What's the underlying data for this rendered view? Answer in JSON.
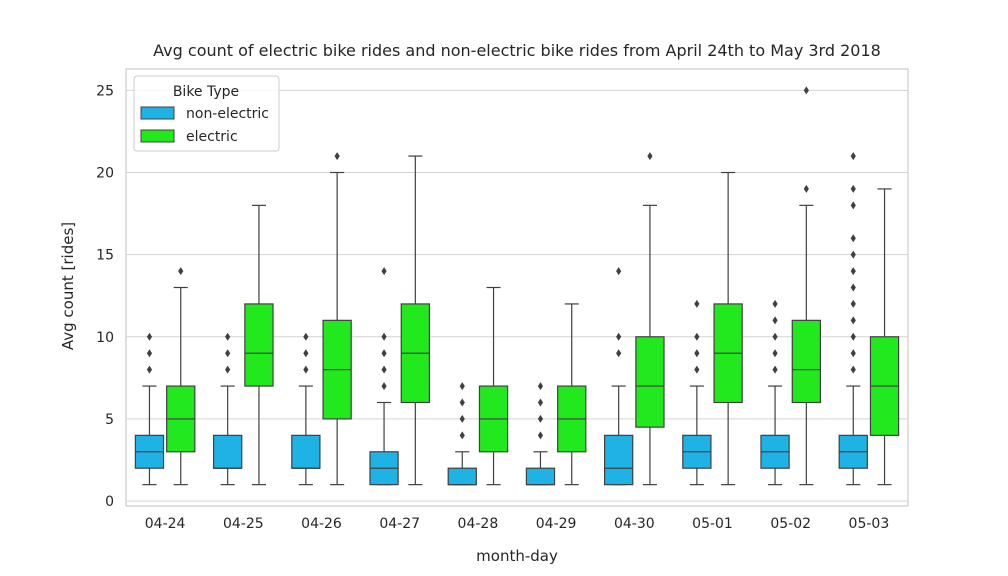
{
  "chart_data": {
    "type": "box",
    "title": "Avg count of electric bike rides and non-electric bike rides from April 24th to May 3rd 2018",
    "xlabel": "month-day",
    "ylabel": "Avg count [rides]",
    "ylim": [
      -0.3,
      26.3
    ],
    "yticks": [
      0,
      5,
      10,
      15,
      20,
      25
    ],
    "grid": "horizontal",
    "legend": {
      "title": "Bike Type",
      "placement": "top-left"
    },
    "categories": [
      "04-24",
      "04-25",
      "04-26",
      "04-27",
      "04-28",
      "04-29",
      "04-30",
      "05-01",
      "05-02",
      "05-03"
    ],
    "series": [
      {
        "name": "non-electric",
        "color": "#1fb3e5",
        "boxes": [
          {
            "whislo": 1,
            "q1": 2,
            "med": 3,
            "q3": 4,
            "whishi": 7,
            "fliers": [
              8,
              9,
              10
            ]
          },
          {
            "whislo": 1,
            "q1": 2,
            "med": 2,
            "q3": 4,
            "whishi": 7,
            "fliers": [
              8,
              9,
              10
            ]
          },
          {
            "whislo": 1,
            "q1": 2,
            "med": 2,
            "q3": 4,
            "whishi": 7,
            "fliers": [
              8,
              9,
              10
            ]
          },
          {
            "whislo": 1,
            "q1": 1,
            "med": 2,
            "q3": 3,
            "whishi": 6,
            "fliers": [
              7,
              8,
              9,
              10,
              14
            ]
          },
          {
            "whislo": 1,
            "q1": 1,
            "med": 1,
            "q3": 2,
            "whishi": 3,
            "fliers": [
              4,
              5,
              6,
              7
            ]
          },
          {
            "whislo": 1,
            "q1": 1,
            "med": 1,
            "q3": 2,
            "whishi": 3,
            "fliers": [
              4,
              5,
              6,
              7
            ]
          },
          {
            "whislo": 1,
            "q1": 1,
            "med": 2,
            "q3": 4,
            "whishi": 7,
            "fliers": [
              9,
              10,
              14
            ]
          },
          {
            "whislo": 1,
            "q1": 2,
            "med": 3,
            "q3": 4,
            "whishi": 7,
            "fliers": [
              8,
              9,
              10,
              12
            ]
          },
          {
            "whislo": 1,
            "q1": 2,
            "med": 3,
            "q3": 4,
            "whishi": 7,
            "fliers": [
              8,
              9,
              10,
              11,
              12
            ]
          },
          {
            "whislo": 1,
            "q1": 2,
            "med": 3,
            "q3": 4,
            "whishi": 7,
            "fliers": [
              8,
              9,
              10,
              11,
              12,
              13,
              14,
              15,
              16,
              18,
              19,
              21
            ]
          }
        ]
      },
      {
        "name": "electric",
        "color": "#22e81e",
        "boxes": [
          {
            "whislo": 1,
            "q1": 3,
            "med": 5,
            "q3": 7,
            "whishi": 13,
            "fliers": [
              14
            ]
          },
          {
            "whislo": 1,
            "q1": 7,
            "med": 9,
            "q3": 12,
            "whishi": 18,
            "fliers": []
          },
          {
            "whislo": 1,
            "q1": 5,
            "med": 8,
            "q3": 11,
            "whishi": 20,
            "fliers": [
              21
            ]
          },
          {
            "whislo": 1,
            "q1": 6,
            "med": 9,
            "q3": 12,
            "whishi": 21,
            "fliers": []
          },
          {
            "whislo": 1,
            "q1": 3,
            "med": 5,
            "q3": 7,
            "whishi": 13,
            "fliers": []
          },
          {
            "whislo": 1,
            "q1": 3,
            "med": 5,
            "q3": 7,
            "whishi": 12,
            "fliers": []
          },
          {
            "whislo": 1,
            "q1": 4.5,
            "med": 7,
            "q3": 10,
            "whishi": 18,
            "fliers": [
              21
            ]
          },
          {
            "whislo": 1,
            "q1": 6,
            "med": 9,
            "q3": 12,
            "whishi": 20,
            "fliers": []
          },
          {
            "whislo": 1,
            "q1": 6,
            "med": 8,
            "q3": 11,
            "whishi": 18,
            "fliers": [
              19,
              25
            ]
          },
          {
            "whislo": 1,
            "q1": 4,
            "med": 7,
            "q3": 10,
            "whishi": 19,
            "fliers": []
          }
        ]
      }
    ]
  }
}
